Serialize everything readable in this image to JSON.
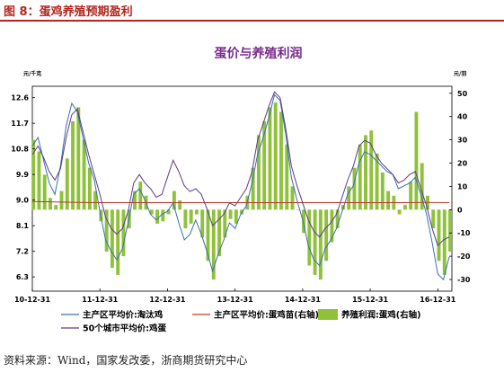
{
  "figure": {
    "title": "图 8：蛋鸡养殖预期盈利",
    "source": "资料来源：Wind，国家发改委，浙商期货研究中心"
  },
  "colors": {
    "accent_red": "#b3261e",
    "title_purple": "#7a2a8c",
    "bar_green": "#8fc13a",
    "hen_line": "#3a6fb0",
    "egg_line": "#5a3c8a",
    "chick_line": "#c0392b"
  },
  "chart_data": {
    "type": "bar",
    "title": "蛋价与养殖利润",
    "left_axis": {
      "unit": "元/千克",
      "ylim": [
        5.8,
        13.0
      ],
      "ticks": [
        "6.3",
        "7.2",
        "8.1",
        "9.0",
        "9.9",
        "10.8",
        "11.7",
        "12.6"
      ],
      "tick_values": [
        6.3,
        7.2,
        8.1,
        9.0,
        9.9,
        10.8,
        11.7,
        12.6
      ]
    },
    "right_axis": {
      "unit": "元/羽",
      "ylim": [
        -35,
        53
      ],
      "ticks": [
        "-30",
        "-20",
        "-10",
        "0",
        "10",
        "20",
        "30",
        "40",
        "50"
      ],
      "tick_values": [
        -30,
        -20,
        -10,
        0,
        10,
        20,
        30,
        40,
        50
      ]
    },
    "x_axis": {
      "xlim": [
        0,
        74.5
      ],
      "ticks": [
        "10-12-31",
        "11-12-31",
        "12-12-31",
        "13-12-31",
        "14-12-31",
        "15-12-31",
        "16-12-31"
      ],
      "tick_positions": [
        0,
        12,
        24,
        36,
        48,
        60,
        72
      ]
    },
    "grid": false,
    "legend_position": "bottom",
    "series": [
      {
        "name": "主产区平均价:淘汰鸡",
        "type": "line",
        "axis": "left",
        "color_key": "hen_line",
        "points": [
          [
            0,
            10.9
          ],
          [
            1,
            11.2
          ],
          [
            2,
            10.4
          ],
          [
            3,
            9.6
          ],
          [
            4,
            9.2
          ],
          [
            5,
            10.2
          ],
          [
            6,
            11.6
          ],
          [
            7,
            12.4
          ],
          [
            8,
            12.1
          ],
          [
            9,
            11.2
          ],
          [
            10,
            10.3
          ],
          [
            11,
            9.7
          ],
          [
            12,
            8.6
          ],
          [
            13,
            7.6
          ],
          [
            14,
            7.2
          ],
          [
            15,
            6.9
          ],
          [
            16,
            7.3
          ],
          [
            17,
            8.2
          ],
          [
            18,
            9.2
          ],
          [
            19,
            9.4
          ],
          [
            20,
            9.0
          ],
          [
            21,
            8.5
          ],
          [
            22,
            8.3
          ],
          [
            23,
            8.5
          ],
          [
            24,
            8.6
          ],
          [
            25,
            8.9
          ],
          [
            26,
            8.2
          ],
          [
            27,
            7.6
          ],
          [
            28,
            7.8
          ],
          [
            29,
            8.3
          ],
          [
            30,
            7.8
          ],
          [
            31,
            7.2
          ],
          [
            32,
            6.5
          ],
          [
            33,
            7.1
          ],
          [
            34,
            7.6
          ],
          [
            35,
            8.2
          ],
          [
            36,
            8.0
          ],
          [
            37,
            8.5
          ],
          [
            38,
            8.8
          ],
          [
            39,
            9.6
          ],
          [
            40,
            10.6
          ],
          [
            41,
            11.2
          ],
          [
            42,
            11.9
          ],
          [
            43,
            12.7
          ],
          [
            44,
            12.5
          ],
          [
            45,
            11.3
          ],
          [
            46,
            9.8
          ],
          [
            47,
            9.0
          ],
          [
            48,
            8.3
          ],
          [
            49,
            7.4
          ],
          [
            50,
            6.9
          ],
          [
            51,
            6.7
          ],
          [
            52,
            7.3
          ],
          [
            53,
            7.6
          ],
          [
            54,
            8.0
          ],
          [
            55,
            8.6
          ],
          [
            56,
            9.2
          ],
          [
            57,
            9.5
          ],
          [
            58,
            10.3
          ],
          [
            59,
            10.7
          ],
          [
            60,
            10.6
          ],
          [
            61,
            10.4
          ],
          [
            62,
            10.2
          ],
          [
            63,
            10.0
          ],
          [
            64,
            9.9
          ],
          [
            65,
            9.4
          ],
          [
            66,
            9.5
          ],
          [
            67,
            9.6
          ],
          [
            68,
            9.8
          ],
          [
            69,
            9.2
          ],
          [
            70,
            8.5
          ],
          [
            71,
            7.5
          ],
          [
            72,
            6.4
          ],
          [
            73,
            6.2
          ],
          [
            74,
            7.0
          ]
        ]
      },
      {
        "name": "主产区平均价:蛋鸡苗(右轴)",
        "type": "line",
        "axis": "right",
        "color_key": "chick_line",
        "points": [
          [
            0,
            3.5
          ],
          [
            4,
            3.3
          ],
          [
            8,
            3.1
          ],
          [
            12,
            3.0
          ],
          [
            20,
            3.0
          ],
          [
            28,
            3.0
          ],
          [
            36,
            3.0
          ],
          [
            44,
            3.0
          ],
          [
            52,
            3.0
          ],
          [
            60,
            3.0
          ],
          [
            66,
            3.0
          ],
          [
            70,
            3.1
          ],
          [
            74,
            3.0
          ]
        ]
      },
      {
        "name": "50个城市平均价:鸡蛋",
        "type": "line",
        "axis": "left",
        "color_key": "egg_line",
        "points": [
          [
            0,
            10.6
          ],
          [
            1,
            10.9
          ],
          [
            2,
            10.5
          ],
          [
            3,
            10.0
          ],
          [
            4,
            9.7
          ],
          [
            5,
            10.1
          ],
          [
            6,
            11.2
          ],
          [
            7,
            12.0
          ],
          [
            8,
            12.2
          ],
          [
            9,
            11.4
          ],
          [
            10,
            10.6
          ],
          [
            11,
            9.9
          ],
          [
            12,
            9.2
          ],
          [
            13,
            8.4
          ],
          [
            14,
            8.0
          ],
          [
            15,
            7.8
          ],
          [
            16,
            8.0
          ],
          [
            17,
            8.6
          ],
          [
            18,
            9.6
          ],
          [
            19,
            9.9
          ],
          [
            20,
            9.6
          ],
          [
            21,
            9.4
          ],
          [
            22,
            9.1
          ],
          [
            23,
            9.2
          ],
          [
            24,
            9.8
          ],
          [
            25,
            10.4
          ],
          [
            26,
            10.0
          ],
          [
            27,
            9.5
          ],
          [
            28,
            9.3
          ],
          [
            29,
            9.4
          ],
          [
            30,
            9.2
          ],
          [
            31,
            8.7
          ],
          [
            32,
            8.1
          ],
          [
            33,
            8.3
          ],
          [
            34,
            8.5
          ],
          [
            35,
            8.9
          ],
          [
            36,
            8.8
          ],
          [
            37,
            9.1
          ],
          [
            38,
            9.4
          ],
          [
            39,
            10.0
          ],
          [
            40,
            11.1
          ],
          [
            41,
            11.7
          ],
          [
            42,
            12.3
          ],
          [
            43,
            12.8
          ],
          [
            44,
            12.6
          ],
          [
            45,
            11.5
          ],
          [
            46,
            10.2
          ],
          [
            47,
            9.5
          ],
          [
            48,
            8.9
          ],
          [
            49,
            8.3
          ],
          [
            50,
            7.9
          ],
          [
            51,
            7.7
          ],
          [
            52,
            8.0
          ],
          [
            53,
            8.2
          ],
          [
            54,
            8.5
          ],
          [
            55,
            9.1
          ],
          [
            56,
            9.7
          ],
          [
            57,
            10.2
          ],
          [
            58,
            10.9
          ],
          [
            59,
            11.1
          ],
          [
            60,
            11.0
          ],
          [
            61,
            10.6
          ],
          [
            62,
            10.3
          ],
          [
            63,
            10.1
          ],
          [
            64,
            9.9
          ],
          [
            65,
            9.6
          ],
          [
            66,
            9.7
          ],
          [
            67,
            9.9
          ],
          [
            68,
            10.0
          ],
          [
            69,
            9.4
          ],
          [
            70,
            8.8
          ],
          [
            71,
            8.0
          ],
          [
            72,
            7.4
          ],
          [
            73,
            7.6
          ],
          [
            74,
            7.7
          ]
        ]
      },
      {
        "name": "养殖利润:蛋鸡(右轴)",
        "type": "bar",
        "axis": "right",
        "color_key": "bar_green",
        "x": [
          0,
          1,
          2,
          3,
          4,
          5,
          6,
          7,
          8,
          9,
          10,
          11,
          12,
          13,
          14,
          15,
          16,
          17,
          18,
          19,
          20,
          21,
          22,
          23,
          24,
          25,
          26,
          27,
          28,
          29,
          30,
          31,
          32,
          33,
          34,
          35,
          36,
          37,
          38,
          39,
          40,
          41,
          42,
          43,
          44,
          45,
          46,
          47,
          48,
          49,
          50,
          51,
          52,
          53,
          54,
          55,
          56,
          57,
          58,
          59,
          60,
          61,
          62,
          63,
          64,
          65,
          66,
          67,
          68,
          69,
          70,
          71,
          72,
          73,
          74
        ],
        "values": [
          30,
          25,
          15,
          5,
          2,
          8,
          22,
          38,
          44,
          30,
          18,
          8,
          -5,
          -18,
          -25,
          -28,
          -20,
          -8,
          8,
          12,
          6,
          -2,
          -6,
          -5,
          -2,
          8,
          4,
          -8,
          -6,
          -2,
          -12,
          -22,
          -30,
          -20,
          -12,
          -4,
          -6,
          -2,
          6,
          18,
          32,
          38,
          44,
          46,
          42,
          28,
          10,
          0,
          -10,
          -24,
          -28,
          -30,
          -22,
          -14,
          -8,
          2,
          10,
          18,
          28,
          32,
          34,
          24,
          16,
          8,
          6,
          -2,
          2,
          12,
          42,
          20,
          6,
          -8,
          -22,
          -28,
          -18
        ]
      }
    ]
  },
  "legend": {
    "hen": "主产区平均价:淘汰鸡",
    "chick": "主产区平均价:蛋鸡苗(右轴)",
    "profit": "养殖利润:蛋鸡(右轴)",
    "egg": "50个城市平均价:鸡蛋"
  }
}
